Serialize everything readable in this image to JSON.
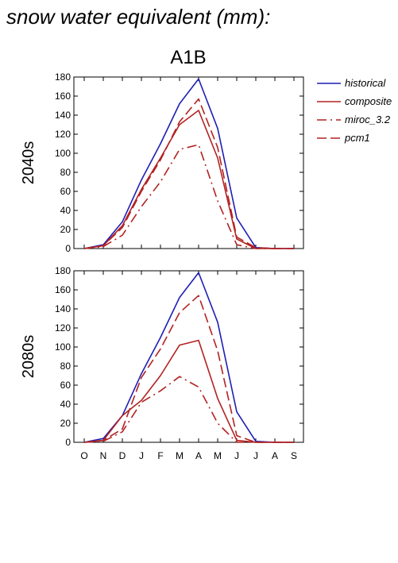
{
  "page": {
    "title": "snow water equivalent (mm):"
  },
  "chart_data": {
    "type": "line",
    "scenario": "A1B",
    "categories": [
      "O",
      "N",
      "D",
      "J",
      "F",
      "M",
      "A",
      "M",
      "J",
      "J",
      "A",
      "S"
    ],
    "ylim": [
      0,
      180
    ],
    "yticks": [
      0,
      20,
      40,
      60,
      80,
      100,
      120,
      140,
      160,
      180
    ],
    "legend": {
      "placement": "right",
      "entries": [
        "historical",
        "composite",
        "miroc_3.2",
        "pcm1"
      ]
    },
    "colors": {
      "historical": "#1f1fb4",
      "future": "#b22222"
    },
    "panels": [
      {
        "label": "2040s",
        "series": [
          {
            "name": "historical",
            "style": "solid",
            "color": "#1f1fb4",
            "values": [
              0,
              4,
              28,
              72,
              110,
              152,
              178,
              126,
              32,
              1,
              0,
              0
            ]
          },
          {
            "name": "composite",
            "style": "solid",
            "color": "#b22222",
            "values": [
              0,
              3,
              24,
              62,
              95,
              130,
              145,
              95,
              10,
              0,
              0,
              0
            ]
          },
          {
            "name": "miroc_3.2",
            "style": "dashdot",
            "color": "#b22222",
            "values": [
              0,
              2,
              14,
              44,
              70,
              104,
              109,
              50,
              4,
              0,
              0,
              0
            ]
          },
          {
            "name": "pcm1",
            "style": "dashed",
            "color": "#b22222",
            "values": [
              0,
              3,
              22,
              60,
              93,
              133,
              157,
              106,
              12,
              1,
              0,
              0
            ]
          }
        ]
      },
      {
        "label": "2080s",
        "series": [
          {
            "name": "historical",
            "style": "solid",
            "color": "#1f1fb4",
            "values": [
              0,
              4,
              28,
              72,
              110,
              152,
              178,
              126,
              32,
              1,
              0,
              0
            ]
          },
          {
            "name": "composite",
            "style": "solid",
            "color": "#b22222",
            "values": [
              0,
              2,
              28,
              44,
              70,
              102,
              107,
              46,
              2,
              0,
              0,
              0
            ]
          },
          {
            "name": "miroc_3.2",
            "style": "dashdot",
            "color": "#b22222",
            "values": [
              0,
              1,
              11,
              42,
              54,
              69,
              58,
              20,
              0,
              0,
              0,
              0
            ]
          },
          {
            "name": "pcm1",
            "style": "dashed",
            "color": "#b22222",
            "values": [
              0,
              2,
              14,
              68,
              98,
              136,
              154,
              96,
              7,
              0,
              0,
              0
            ]
          }
        ]
      }
    ]
  }
}
